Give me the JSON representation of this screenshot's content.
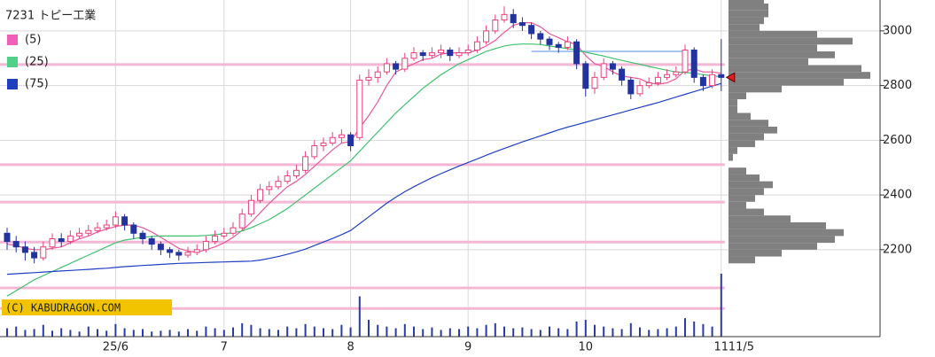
{
  "chart_data": {
    "type": "candlestick",
    "title": "7231 トピー工業",
    "categories": [
      null,
      null,
      null,
      null,
      null,
      null,
      null,
      null,
      null,
      null,
      null,
      null,
      "25/6",
      null,
      null,
      null,
      null,
      null,
      null,
      null,
      null,
      null,
      null,
      null,
      "7",
      null,
      null,
      null,
      null,
      null,
      null,
      null,
      null,
      null,
      null,
      null,
      null,
      null,
      "8",
      null,
      null,
      null,
      null,
      null,
      null,
      null,
      null,
      null,
      null,
      null,
      null,
      "9",
      null,
      null,
      null,
      null,
      null,
      null,
      null,
      null,
      null,
      null,
      null,
      null,
      "10",
      null,
      null,
      null,
      null,
      null,
      null,
      null,
      null,
      null,
      null,
      null,
      null,
      null,
      null,
      "11"
    ],
    "last_date_label": "11/5",
    "candles": {
      "open": [
        2260,
        2230,
        2210,
        2190,
        2170,
        2210,
        2240,
        2230,
        2250,
        2260,
        2270,
        2280,
        2290,
        2320,
        2290,
        2260,
        2240,
        2220,
        2200,
        2190,
        2180,
        2190,
        2200,
        2230,
        2250,
        2260,
        2280,
        2330,
        2380,
        2420,
        2430,
        2450,
        2470,
        2490,
        2540,
        2580,
        2590,
        2610,
        2620,
        2610,
        2820,
        2830,
        2850,
        2880,
        2860,
        2900,
        2920,
        2910,
        2920,
        2930,
        2910,
        2920,
        2930,
        2960,
        3000,
        3040,
        3060,
        3030,
        3020,
        2990,
        2970,
        2950,
        2940,
        2960,
        2880,
        2790,
        2830,
        2880,
        2860,
        2820,
        2770,
        2800,
        2810,
        2830,
        2840,
        2850,
        2930,
        2830,
        2800,
        2840
      ],
      "high": [
        2280,
        2250,
        2230,
        2210,
        2230,
        2260,
        2260,
        2270,
        2280,
        2290,
        2300,
        2310,
        2340,
        2330,
        2300,
        2270,
        2250,
        2230,
        2210,
        2200,
        2210,
        2220,
        2250,
        2270,
        2280,
        2300,
        2350,
        2400,
        2440,
        2450,
        2470,
        2490,
        2510,
        2560,
        2600,
        2610,
        2630,
        2640,
        2630,
        2840,
        2860,
        2870,
        2900,
        2890,
        2920,
        2940,
        2930,
        2940,
        2950,
        2940,
        2940,
        2950,
        2980,
        3020,
        3060,
        3090,
        3080,
        3050,
        3030,
        3000,
        2980,
        2960,
        2980,
        2970,
        2890,
        2850,
        2900,
        2890,
        2870,
        2830,
        2820,
        2830,
        2850,
        2860,
        2870,
        2950,
        2940,
        2840,
        2860,
        2970
      ],
      "low": [
        2200,
        2190,
        2160,
        2150,
        2160,
        2200,
        2210,
        2220,
        2240,
        2250,
        2260,
        2270,
        2280,
        2270,
        2240,
        2220,
        2200,
        2180,
        2170,
        2160,
        2170,
        2180,
        2190,
        2220,
        2240,
        2250,
        2270,
        2320,
        2370,
        2400,
        2420,
        2440,
        2460,
        2480,
        2530,
        2560,
        2580,
        2590,
        2560,
        2600,
        2800,
        2810,
        2840,
        2840,
        2850,
        2890,
        2890,
        2900,
        2900,
        2890,
        2900,
        2910,
        2920,
        2950,
        2990,
        3030,
        3010,
        3000,
        2970,
        2950,
        2930,
        2920,
        2930,
        2860,
        2760,
        2770,
        2820,
        2840,
        2800,
        2750,
        2760,
        2790,
        2800,
        2820,
        2830,
        2840,
        2810,
        2780,
        2790,
        2780
      ],
      "close": [
        2230,
        2210,
        2190,
        2170,
        2210,
        2240,
        2230,
        2250,
        2260,
        2270,
        2280,
        2290,
        2320,
        2290,
        2260,
        2240,
        2220,
        2200,
        2190,
        2180,
        2190,
        2200,
        2230,
        2250,
        2260,
        2280,
        2330,
        2380,
        2420,
        2430,
        2450,
        2470,
        2490,
        2540,
        2580,
        2590,
        2610,
        2620,
        2580,
        2820,
        2830,
        2850,
        2880,
        2860,
        2900,
        2920,
        2910,
        2920,
        2930,
        2910,
        2920,
        2930,
        2960,
        3000,
        3040,
        3060,
        3030,
        3020,
        2990,
        2970,
        2950,
        2940,
        2960,
        2880,
        2790,
        2830,
        2880,
        2860,
        2820,
        2770,
        2800,
        2810,
        2830,
        2840,
        2850,
        2930,
        2830,
        2800,
        2840,
        2830
      ],
      "up_color": "#e8407a",
      "down_color": "#2233a0"
    },
    "series": [
      {
        "name": "(5)",
        "color": "#e8569a",
        "legend_color": "#f060b8",
        "values": [
          2220,
          2215,
          2205,
          2200,
          2200,
          2205,
          2210,
          2225,
          2240,
          2250,
          2265,
          2275,
          2285,
          2290,
          2290,
          2280,
          2265,
          2245,
          2225,
          2205,
          2195,
          2190,
          2200,
          2210,
          2225,
          2245,
          2270,
          2300,
          2335,
          2370,
          2400,
          2430,
          2450,
          2475,
          2505,
          2535,
          2565,
          2590,
          2595,
          2645,
          2690,
          2740,
          2800,
          2850,
          2865,
          2880,
          2895,
          2900,
          2915,
          2920,
          2920,
          2920,
          2930,
          2945,
          2965,
          2995,
          3020,
          3030,
          3030,
          3015,
          2990,
          2975,
          2960,
          2950,
          2910,
          2880,
          2870,
          2850,
          2835,
          2830,
          2825,
          2810,
          2805,
          2810,
          2825,
          2855,
          2860,
          2850,
          2850,
          2845
        ]
      },
      {
        "name": "(25)",
        "color": "#40c070",
        "legend_color": "#50d088",
        "values": [
          2030,
          2050,
          2070,
          2090,
          2105,
          2120,
          2135,
          2150,
          2165,
          2180,
          2195,
          2210,
          2225,
          2235,
          2240,
          2245,
          2248,
          2250,
          2250,
          2250,
          2250,
          2250,
          2252,
          2255,
          2258,
          2262,
          2268,
          2280,
          2295,
          2310,
          2330,
          2350,
          2375,
          2400,
          2425,
          2450,
          2475,
          2500,
          2525,
          2560,
          2595,
          2630,
          2665,
          2700,
          2730,
          2760,
          2790,
          2815,
          2840,
          2860,
          2880,
          2895,
          2910,
          2925,
          2935,
          2945,
          2950,
          2952,
          2952,
          2950,
          2945,
          2940,
          2935,
          2930,
          2922,
          2915,
          2908,
          2900,
          2892,
          2885,
          2878,
          2870,
          2863,
          2856,
          2850,
          2848,
          2845,
          2840,
          2836,
          2832
        ]
      },
      {
        "name": "(75)",
        "color": "#2040c0",
        "legend_color": "#2040c0",
        "values": [
          2110,
          2112,
          2114,
          2116,
          2118,
          2120,
          2122,
          2124,
          2126,
          2128,
          2130,
          2132,
          2135,
          2138,
          2140,
          2142,
          2144,
          2146,
          2148,
          2150,
          2151,
          2152,
          2153,
          2154,
          2155,
          2156,
          2157,
          2158,
          2162,
          2168,
          2175,
          2183,
          2192,
          2202,
          2215,
          2228,
          2241,
          2255,
          2270,
          2295,
          2320,
          2345,
          2370,
          2392,
          2412,
          2430,
          2447,
          2463,
          2478,
          2492,
          2506,
          2519,
          2532,
          2545,
          2558,
          2570,
          2582,
          2594,
          2605,
          2616,
          2627,
          2638,
          2648,
          2657,
          2666,
          2675,
          2684,
          2693,
          2702,
          2711,
          2720,
          2729,
          2738,
          2748,
          2758,
          2768,
          2778,
          2788,
          2798,
          2808
        ]
      }
    ],
    "volume": {
      "color": "#2a3aa8",
      "lim": [
        0,
        95
      ],
      "values": [
        10,
        12,
        8,
        9,
        14,
        7,
        10,
        8,
        6,
        12,
        9,
        7,
        15,
        10,
        8,
        9,
        6,
        7,
        8,
        6,
        9,
        7,
        12,
        10,
        8,
        11,
        16,
        14,
        10,
        9,
        8,
        12,
        10,
        15,
        12,
        10,
        9,
        14,
        11,
        48,
        20,
        14,
        12,
        10,
        15,
        12,
        9,
        11,
        8,
        10,
        9,
        12,
        10,
        14,
        16,
        12,
        10,
        11,
        9,
        8,
        12,
        10,
        9,
        18,
        20,
        14,
        12,
        10,
        9,
        16,
        11,
        8,
        9,
        10,
        12,
        22,
        18,
        15,
        12,
        75
      ]
    },
    "profile": {
      "color": "#808080",
      "lim": [
        0,
        170
      ],
      "bins": [
        2150,
        2175,
        2200,
        2225,
        2250,
        2275,
        2300,
        2325,
        2350,
        2375,
        2400,
        2425,
        2450,
        2475,
        2500,
        2525,
        2550,
        2575,
        2600,
        2625,
        2650,
        2675,
        2700,
        2725,
        2750,
        2775,
        2800,
        2825,
        2850,
        2875,
        2900,
        2925,
        2950,
        2975,
        3000,
        3025,
        3050,
        3075,
        3100,
        3125
      ],
      "counts": [
        30,
        60,
        100,
        120,
        130,
        110,
        70,
        40,
        20,
        30,
        40,
        50,
        35,
        20,
        0,
        5,
        10,
        30,
        40,
        55,
        45,
        25,
        10,
        10,
        20,
        60,
        130,
        160,
        150,
        90,
        120,
        100,
        140,
        100,
        35,
        40,
        45,
        45,
        40
      ]
    },
    "support_lines": {
      "color": "#f4b8d4",
      "values": [
        2877,
        2511,
        2374,
        2228,
        2060,
        1985
      ]
    },
    "range_line": {
      "color": "#a8c8f0",
      "value": 2925,
      "start": 58,
      "end": 75
    },
    "ylim": [
      1882,
      3113
    ],
    "yticks": [
      2200,
      2400,
      2600,
      2800,
      3000
    ],
    "grid": true,
    "watermark": "(C) KABUDRAGON.COM"
  }
}
